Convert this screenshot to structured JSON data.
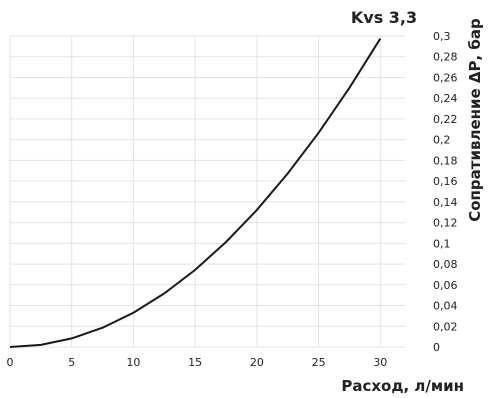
{
  "chart_data": {
    "type": "line",
    "series": [
      {
        "name": "Kvs 3,3",
        "x": [
          0,
          2.5,
          5,
          7.5,
          10,
          12.5,
          15,
          17.5,
          20,
          22.5,
          25,
          27.5,
          30
        ],
        "y": [
          0,
          0.0021,
          0.0083,
          0.0186,
          0.0331,
          0.0517,
          0.0744,
          0.1013,
          0.1322,
          0.1674,
          0.2066,
          0.25,
          0.2975
        ]
      }
    ],
    "xlabel": "Расход, л/мин",
    "ylabel": "Сопративление ΔР, бар",
    "xlim": [
      0,
      32
    ],
    "ylim": [
      0,
      0.3
    ],
    "xticks": [
      "0",
      "5",
      "10",
      "15",
      "20",
      "25",
      "30"
    ],
    "yticks": [
      "0",
      "0,02",
      "0,04",
      "0,06",
      "0,08",
      "0,1",
      "0,12",
      "0,14",
      "0,16",
      "0,18",
      "0,2",
      "0,22",
      "0,24",
      "0,26",
      "0,28",
      "0,3"
    ],
    "grid": true,
    "yaxis_side": "right"
  }
}
